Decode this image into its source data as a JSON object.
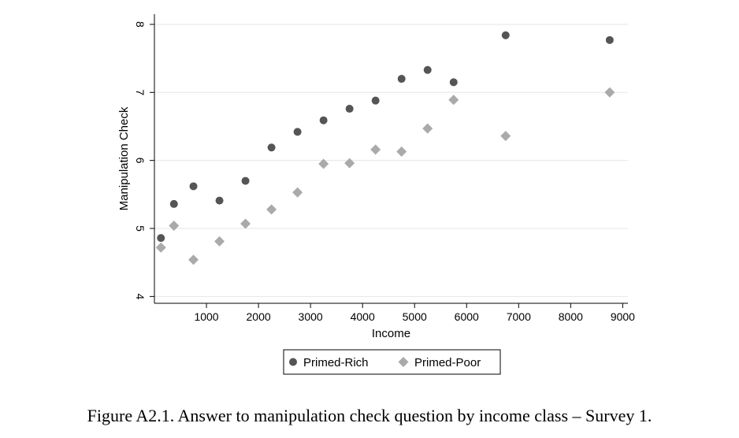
{
  "caption": "Figure A2.1. Answer to manipulation check question by income class – Survey 1.",
  "chart_data": {
    "type": "scatter",
    "xlabel": "Income",
    "ylabel": "Manipulation Check",
    "xlim": [
      0,
      9100
    ],
    "ylim": [
      3.9,
      8.15
    ],
    "xticks": [
      1000,
      2000,
      3000,
      4000,
      5000,
      6000,
      7000,
      8000,
      9000
    ],
    "yticks": [
      4,
      5,
      6,
      7,
      8
    ],
    "grid": true,
    "legend_position": "bottom",
    "series": [
      {
        "name": "Primed-Rich",
        "marker": "circle",
        "color": "#555555",
        "points": [
          {
            "x": 125,
            "y": 4.86
          },
          {
            "x": 375,
            "y": 5.36
          },
          {
            "x": 750,
            "y": 5.62
          },
          {
            "x": 1250,
            "y": 5.41
          },
          {
            "x": 1750,
            "y": 5.7
          },
          {
            "x": 2250,
            "y": 6.19
          },
          {
            "x": 2750,
            "y": 6.42
          },
          {
            "x": 3250,
            "y": 6.59
          },
          {
            "x": 3750,
            "y": 6.76
          },
          {
            "x": 4250,
            "y": 6.88
          },
          {
            "x": 4750,
            "y": 7.2
          },
          {
            "x": 5250,
            "y": 7.33
          },
          {
            "x": 5750,
            "y": 7.15
          },
          {
            "x": 6750,
            "y": 7.84
          },
          {
            "x": 8750,
            "y": 7.77
          }
        ]
      },
      {
        "name": "Primed-Poor",
        "marker": "diamond",
        "color": "#aaaaaa",
        "points": [
          {
            "x": 125,
            "y": 4.72
          },
          {
            "x": 375,
            "y": 5.04
          },
          {
            "x": 750,
            "y": 4.54
          },
          {
            "x": 1250,
            "y": 4.81
          },
          {
            "x": 1750,
            "y": 5.07
          },
          {
            "x": 2250,
            "y": 5.28
          },
          {
            "x": 2750,
            "y": 5.53
          },
          {
            "x": 3250,
            "y": 5.95
          },
          {
            "x": 3750,
            "y": 5.96
          },
          {
            "x": 4250,
            "y": 6.16
          },
          {
            "x": 4750,
            "y": 6.13
          },
          {
            "x": 5250,
            "y": 6.47
          },
          {
            "x": 5750,
            "y": 6.89
          },
          {
            "x": 6750,
            "y": 6.36
          },
          {
            "x": 8750,
            "y": 7.0
          }
        ]
      }
    ]
  }
}
